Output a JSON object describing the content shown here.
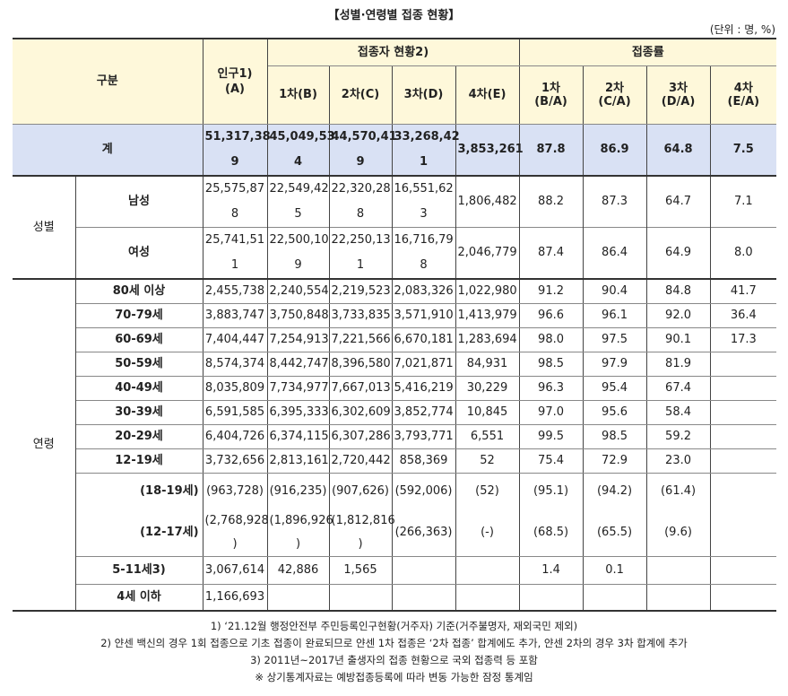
{
  "title": "【성별·연령별 접종 현황】",
  "unit": "(단위 : 명, %)",
  "header": {
    "category": "구분",
    "population": "인구1)\n(A)",
    "vaccinated_group": "접종자 현황2)",
    "rate_group": "접종률",
    "dose1": "1차(B)",
    "dose2": "2차(C)",
    "dose3": "3차(D)",
    "dose4": "4차(E)",
    "rate1": "1차\n(B/A)",
    "rate2": "2차\n(C/A)",
    "rate3": "3차\n(D/A)",
    "rate4": "4차\n(E/A)"
  },
  "total": {
    "label": "계",
    "values": [
      "51,317,38\n9",
      "45,049,53\n4",
      "44,570,41\n9",
      "33,268,42\n1",
      "3,853,261",
      "87.8",
      "86.9",
      "64.8",
      "7.5"
    ]
  },
  "gender": {
    "label": "성별",
    "rows": [
      {
        "label": "남성",
        "values": [
          "25,575,87\n8",
          "22,549,42\n5",
          "22,320,28\n8",
          "16,551,62\n3",
          "1,806,482",
          "88.2",
          "87.3",
          "64.7",
          "7.1"
        ]
      },
      {
        "label": "여성",
        "values": [
          "25,741,51\n1",
          "22,500,10\n9",
          "22,250,13\n1",
          "16,716,79\n8",
          "2,046,779",
          "87.4",
          "86.4",
          "64.9",
          "8.0"
        ]
      }
    ]
  },
  "age": {
    "label": "연령",
    "rows": [
      {
        "label": "80세 이상",
        "values": [
          "2,455,738",
          "2,240,554",
          "2,219,523",
          "2,083,326",
          "1,022,980",
          "91.2",
          "90.4",
          "84.8",
          "41.7"
        ]
      },
      {
        "label": "70-79세",
        "values": [
          "3,883,747",
          "3,750,848",
          "3,733,835",
          "3,571,910",
          "1,413,979",
          "96.6",
          "96.1",
          "92.0",
          "36.4"
        ]
      },
      {
        "label": "60-69세",
        "values": [
          "7,404,447",
          "7,254,913",
          "7,221,566",
          "6,670,181",
          "1,283,694",
          "98.0",
          "97.5",
          "90.1",
          "17.3"
        ]
      },
      {
        "label": "50-59세",
        "values": [
          "8,574,374",
          "8,442,747",
          "8,396,580",
          "7,021,871",
          "84,931",
          "98.5",
          "97.9",
          "81.9",
          ""
        ]
      },
      {
        "label": "40-49세",
        "values": [
          "8,035,809",
          "7,734,977",
          "7,667,013",
          "5,416,219",
          "30,229",
          "96.3",
          "95.4",
          "67.4",
          ""
        ]
      },
      {
        "label": "30-39세",
        "values": [
          "6,591,585",
          "6,395,333",
          "6,302,609",
          "3,852,774",
          "10,845",
          "97.0",
          "95.6",
          "58.4",
          ""
        ]
      },
      {
        "label": "20-29세",
        "values": [
          "6,404,726",
          "6,374,115",
          "6,307,286",
          "3,793,771",
          "6,551",
          "99.5",
          "98.5",
          "59.2",
          ""
        ]
      },
      {
        "label": "12-19세",
        "values": [
          "3,732,656",
          "2,813,161",
          "2,720,442",
          "858,369",
          "52",
          "75.4",
          "72.9",
          "23.0",
          ""
        ]
      }
    ],
    "sub_rows": [
      {
        "label": "(18-19세)",
        "values": [
          "(963,728)",
          "(916,235)",
          "(907,626)",
          "(592,006)",
          "(52)",
          "(95.1)",
          "(94.2)",
          "(61.4)",
          ""
        ]
      },
      {
        "label": "(12-17세)",
        "values": [
          "(2,768,928\n)",
          "(1,896,926\n)",
          "(1,812,816\n)",
          "(266,363)",
          "(-)",
          "(68.5)",
          "(65.5)",
          "(9.6)",
          ""
        ]
      }
    ],
    "tail_rows": [
      {
        "label": "5-11세3)",
        "values": [
          "3,067,614",
          "42,886",
          "1,565",
          "",
          "",
          "1.4",
          "0.1",
          "",
          ""
        ]
      },
      {
        "label": "4세 이하",
        "values": [
          "1,166,693",
          "",
          "",
          "",
          "",
          "",
          "",
          "",
          ""
        ]
      }
    ]
  },
  "notes": [
    "1) ‘21.12월 행정안전부 주민등록인구현황(거주자) 기준(거주불명자, 재외국민 제외)",
    "2) 얀센 백신의 경우 1회 접종으로 기초 접종이 완료되므로 얀센 1차 접종은 ‘2차 접종’ 합계에도 추가, 얀센 2차의 경우 3차 합계에 추가",
    "3) 2011년~2017년 출생자의 접종 현황으로 국외 접종력 등 포함",
    "※ 상기통계자료는 예방접종등록에 따라 변동 가능한 잠정 통계임"
  ]
}
